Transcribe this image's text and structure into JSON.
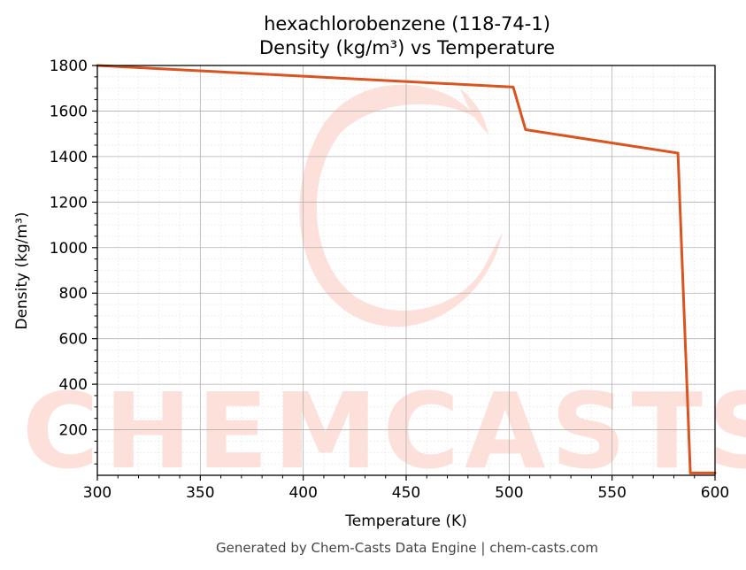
{
  "chart_data": {
    "type": "line",
    "title_line1": "hexachlorobenzene (118-74-1)",
    "title_line2": "Density (kg/m³) vs Temperature",
    "xlabel": "Temperature (K)",
    "ylabel": "Density (kg/m³)",
    "xlim": [
      300,
      600
    ],
    "ylim": [
      0,
      1800
    ],
    "xticks": [
      300,
      350,
      400,
      450,
      500,
      550,
      600
    ],
    "yticks": [
      200,
      400,
      600,
      800,
      1000,
      1200,
      1400,
      1600,
      1800
    ],
    "grid": true,
    "series": [
      {
        "color": "#d9541e",
        "x": [
          300,
          502,
          508,
          582,
          588,
          600
        ],
        "y": [
          1800,
          1705,
          1518,
          1415,
          10,
          10
        ]
      }
    ]
  },
  "watermark": {
    "text": "CHEMCASTS",
    "color": "#fde0d9"
  },
  "footer": "Generated by Chem-Casts Data Engine | chem-casts.com"
}
